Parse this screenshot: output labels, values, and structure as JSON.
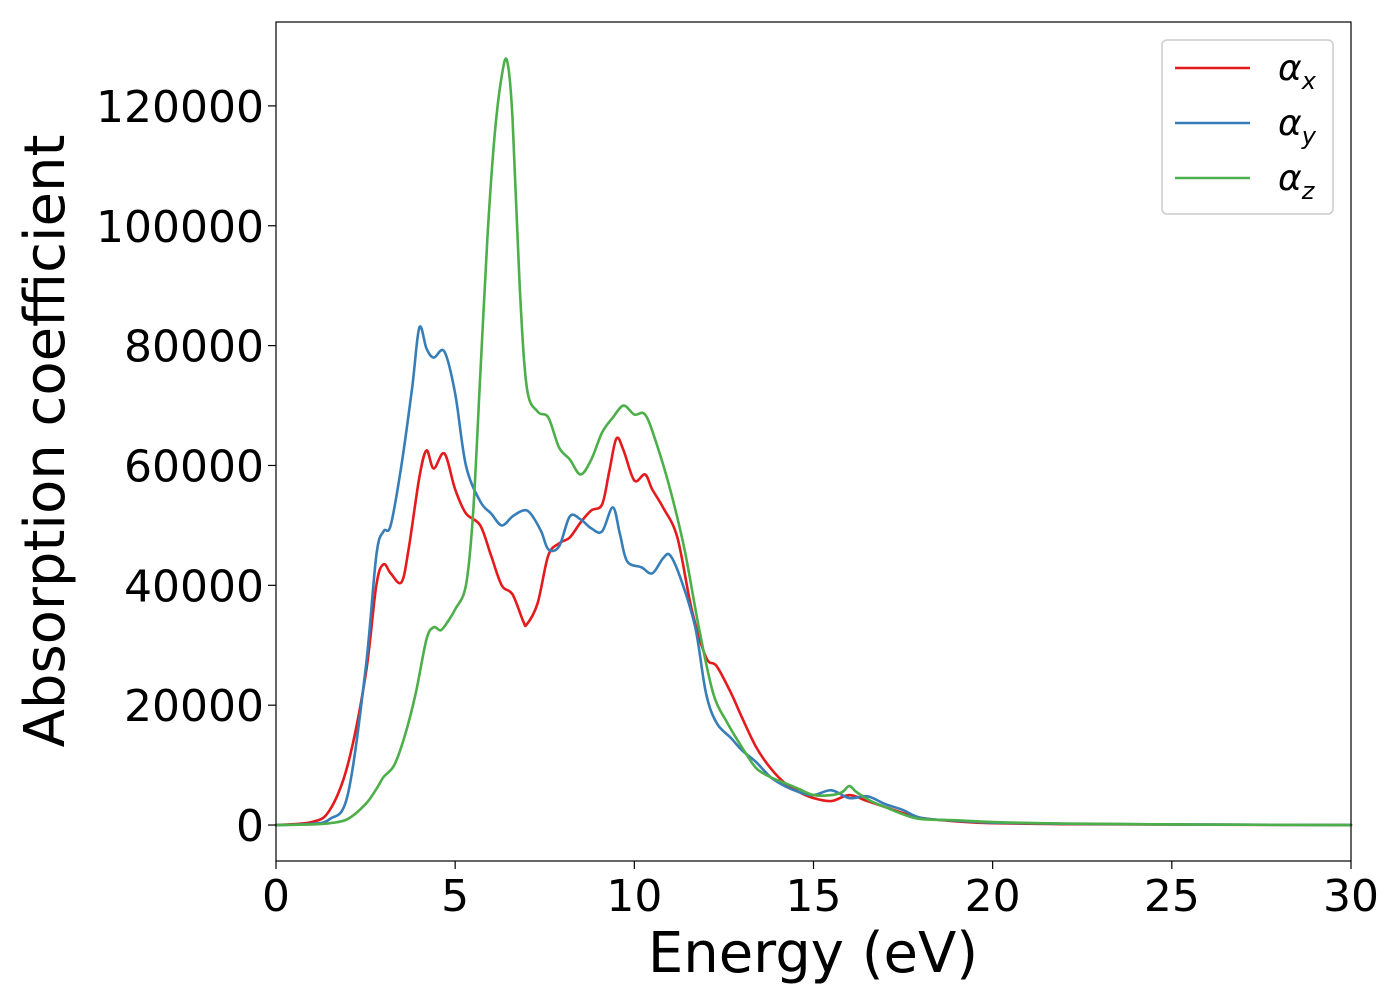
{
  "chart_data": {
    "type": "line",
    "title": "",
    "xlabel": "Energy (eV)",
    "ylabel": "Absorption coefficient",
    "xlim": [
      0,
      30
    ],
    "ylim": [
      -6000,
      134000
    ],
    "xticks": [
      0,
      5,
      10,
      15,
      20,
      25,
      30
    ],
    "xtick_labels": [
      "0",
      "5",
      "10",
      "15",
      "20",
      "25",
      "30"
    ],
    "yticks": [
      0,
      20000,
      40000,
      60000,
      80000,
      100000,
      120000
    ],
    "ytick_labels": [
      "0",
      "20000",
      "40000",
      "60000",
      "80000",
      "100000",
      "120000"
    ],
    "grid": false,
    "legend_position": "top-right",
    "series": [
      {
        "name": "α_x",
        "legend_base": "α",
        "legend_sub": "x",
        "color": "#e41a1c",
        "x": [
          0,
          1.0,
          1.5,
          2.0,
          2.5,
          2.8,
          3.0,
          3.2,
          3.5,
          3.7,
          4.0,
          4.2,
          4.4,
          4.7,
          5.0,
          5.3,
          5.7,
          6.0,
          6.3,
          6.6,
          6.9,
          7.0,
          7.3,
          7.6,
          7.9,
          8.2,
          8.5,
          8.8,
          9.1,
          9.3,
          9.5,
          9.7,
          10.0,
          10.3,
          10.5,
          10.8,
          11.2,
          11.6,
          12.0,
          12.3,
          12.7,
          13.0,
          13.4,
          13.8,
          14.2,
          14.6,
          15.0,
          15.5,
          16.0,
          16.5,
          17.0,
          17.5,
          18.0,
          19.0,
          20.0,
          22.0,
          25.0,
          30.0
        ],
        "y": [
          0,
          500,
          2500,
          10000,
          25000,
          40000,
          43500,
          42000,
          40500,
          46000,
          58000,
          62500,
          59500,
          62000,
          56000,
          52000,
          50000,
          45000,
          40000,
          38500,
          34000,
          33500,
          37000,
          45000,
          47000,
          48000,
          50500,
          52500,
          53500,
          59000,
          64500,
          62500,
          57500,
          58500,
          56000,
          53000,
          48000,
          36000,
          28000,
          26500,
          22000,
          18000,
          13000,
          9500,
          7000,
          5500,
          4500,
          4000,
          5000,
          4000,
          3000,
          2000,
          1200,
          600,
          300,
          150,
          80,
          0
        ]
      },
      {
        "name": "α_y",
        "legend_base": "α",
        "legend_sub": "y",
        "color": "#377eb8",
        "x": [
          0,
          1.0,
          1.5,
          2.0,
          2.5,
          2.8,
          3.0,
          3.2,
          3.5,
          3.8,
          4.0,
          4.2,
          4.4,
          4.7,
          5.0,
          5.3,
          5.7,
          6.0,
          6.3,
          6.6,
          6.9,
          7.1,
          7.4,
          7.6,
          7.9,
          8.2,
          8.5,
          8.8,
          9.1,
          9.4,
          9.6,
          9.8,
          10.2,
          10.5,
          10.8,
          11.0,
          11.3,
          11.7,
          12.0,
          12.3,
          12.7,
          13.0,
          13.4,
          13.8,
          14.2,
          14.6,
          15.0,
          15.5,
          16.0,
          16.5,
          17.0,
          17.5,
          18.0,
          19.0,
          20.0,
          22.0,
          25.0,
          30.0
        ],
        "y": [
          0,
          200,
          1000,
          5000,
          26000,
          45000,
          49000,
          50000,
          60000,
          73000,
          83000,
          79500,
          78000,
          79000,
          72000,
          60000,
          54000,
          52000,
          50000,
          51500,
          52500,
          52000,
          49000,
          46000,
          46500,
          51500,
          51000,
          49500,
          49000,
          53000,
          48500,
          44000,
          43000,
          42000,
          44500,
          45000,
          41000,
          33000,
          22000,
          17000,
          14500,
          12500,
          10500,
          8000,
          6500,
          5500,
          5000,
          5800,
          4500,
          4800,
          3500,
          2500,
          1200,
          700,
          400,
          200,
          100,
          0
        ]
      },
      {
        "name": "α_z",
        "legend_base": "α",
        "legend_sub": "z",
        "color": "#4daf4a",
        "x": [
          0,
          1.0,
          1.5,
          2.0,
          2.5,
          2.8,
          3.0,
          3.3,
          3.6,
          3.9,
          4.2,
          4.4,
          4.6,
          4.8,
          5.0,
          5.3,
          5.5,
          5.7,
          5.9,
          6.1,
          6.3,
          6.45,
          6.6,
          6.8,
          7.0,
          7.3,
          7.6,
          7.9,
          8.2,
          8.5,
          8.8,
          9.1,
          9.4,
          9.7,
          10.0,
          10.3,
          10.6,
          11.0,
          11.4,
          11.8,
          12.2,
          12.6,
          13.0,
          13.4,
          13.8,
          14.2,
          14.6,
          15.0,
          15.5,
          15.8,
          16.0,
          16.2,
          16.6,
          17.0,
          17.5,
          18.0,
          19.0,
          20.0,
          22.0,
          25.0,
          30.0
        ],
        "y": [
          0,
          100,
          300,
          1000,
          3500,
          6000,
          8000,
          10000,
          15000,
          22000,
          31000,
          33000,
          32500,
          34000,
          36000,
          40000,
          52000,
          75000,
          98000,
          115000,
          125000,
          127500,
          118000,
          90000,
          73000,
          69000,
          68000,
          63000,
          61000,
          58500,
          61000,
          65500,
          68000,
          70000,
          68500,
          68500,
          64000,
          56000,
          46000,
          33000,
          22000,
          17000,
          13000,
          9500,
          8000,
          7000,
          6000,
          5000,
          5000,
          5500,
          6500,
          5500,
          4000,
          3000,
          1800,
          1000,
          800,
          500,
          250,
          100,
          0
        ]
      }
    ]
  }
}
